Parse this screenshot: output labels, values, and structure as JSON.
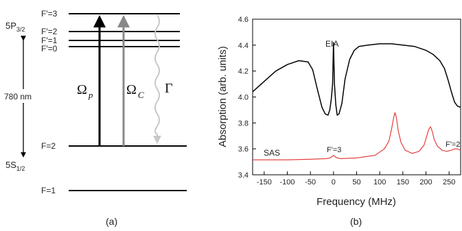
{
  "diagram": {
    "panel_label": "(a)",
    "upper_state": {
      "term": "5P",
      "subscript": "3/2"
    },
    "lower_state": {
      "term": "5S",
      "subscript": "1/2"
    },
    "wavelength_label": "780 nm",
    "upper_levels": [
      "F′=3",
      "F′=2",
      "F′=1",
      "F′=0"
    ],
    "lower_levels": [
      "F=2",
      "F=1"
    ],
    "probe": {
      "symbol": "Ω",
      "subscript": "p",
      "color": "#000000"
    },
    "coupling": {
      "symbol": "Ω",
      "subscript": "C",
      "color": "#888888"
    },
    "decay": {
      "symbol": "Γ",
      "color": "#c8c8c8"
    }
  },
  "chart": {
    "panel_label": "(b)",
    "annotations": {
      "eia": "EIA",
      "sas": "SAS",
      "f3": "F'=3",
      "f2": "F'=2"
    },
    "colors": {
      "eia": "#000000",
      "sas": "#e03030"
    }
  },
  "chart_data": {
    "type": "line",
    "xlabel": "Frequency (MHz)",
    "ylabel": "Absorption (arb. units)",
    "xlim": [
      -175,
      275
    ],
    "ylim": [
      3.4,
      4.6
    ],
    "xticks": [
      -150,
      -100,
      -50,
      0,
      50,
      100,
      150,
      200,
      250
    ],
    "yticks": [
      3.4,
      3.6,
      3.8,
      4.0,
      4.2,
      4.4,
      4.6
    ],
    "series": [
      {
        "name": "EIA",
        "x": [
          -175,
          -150,
          -125,
          -100,
          -75,
          -55,
          -45,
          -35,
          -25,
          -18,
          -12,
          -8,
          -5,
          -2,
          0,
          2,
          5,
          8,
          12,
          18,
          25,
          35,
          45,
          55,
          75,
          100,
          125,
          150,
          175,
          200,
          215,
          230,
          240,
          248,
          255,
          262,
          268,
          275
        ],
        "y": [
          4.04,
          4.12,
          4.2,
          4.25,
          4.28,
          4.27,
          4.21,
          4.06,
          3.92,
          3.87,
          3.86,
          3.9,
          3.98,
          4.1,
          4.42,
          4.1,
          3.94,
          3.86,
          3.87,
          3.95,
          4.14,
          4.29,
          4.36,
          4.39,
          4.4,
          4.41,
          4.41,
          4.4,
          4.39,
          4.36,
          4.33,
          4.28,
          4.22,
          4.13,
          4.04,
          3.96,
          3.93,
          3.92
        ]
      },
      {
        "name": "SAS",
        "x": [
          -175,
          -100,
          -50,
          -15,
          -8,
          -3,
          0,
          3,
          8,
          15,
          50,
          90,
          110,
          120,
          126,
          130,
          133,
          136,
          140,
          146,
          155,
          170,
          185,
          196,
          202,
          206,
          210,
          214,
          218,
          225,
          235,
          245,
          255,
          262,
          268,
          275
        ],
        "y": [
          3.515,
          3.515,
          3.52,
          3.525,
          3.53,
          3.54,
          3.55,
          3.54,
          3.53,
          3.525,
          3.53,
          3.55,
          3.6,
          3.66,
          3.76,
          3.84,
          3.88,
          3.84,
          3.74,
          3.65,
          3.59,
          3.565,
          3.58,
          3.63,
          3.7,
          3.75,
          3.77,
          3.73,
          3.67,
          3.62,
          3.59,
          3.58,
          3.59,
          3.6,
          3.6,
          3.59
        ]
      }
    ]
  }
}
